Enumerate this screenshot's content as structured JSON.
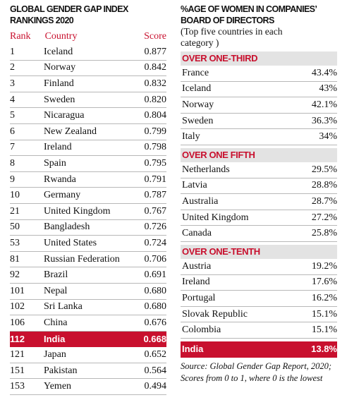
{
  "left": {
    "title_line1": "GLOBAL GENDER GAP INDEX",
    "title_line2": "RANKINGS 2020",
    "headers": {
      "rank": "Rank",
      "country": "Country",
      "score": "Score"
    },
    "rows": [
      {
        "rank": "1",
        "country": "Iceland",
        "score": "0.877"
      },
      {
        "rank": "2",
        "country": "Norway",
        "score": "0.842"
      },
      {
        "rank": "3",
        "country": "Finland",
        "score": "0.832"
      },
      {
        "rank": "4",
        "country": "Sweden",
        "score": "0.820"
      },
      {
        "rank": "5",
        "country": "Nicaragua",
        "score": "0.804"
      },
      {
        "rank": "6",
        "country": "New Zealand",
        "score": "0.799"
      },
      {
        "rank": "7",
        "country": "Ireland",
        "score": "0.798"
      },
      {
        "rank": "8",
        "country": "Spain",
        "score": "0.795"
      },
      {
        "rank": "9",
        "country": "Rwanda",
        "score": "0.791"
      },
      {
        "rank": "10",
        "country": "Germany",
        "score": "0.787"
      },
      {
        "rank": "21",
        "country": "United Kingdom",
        "score": "0.767"
      },
      {
        "rank": "50",
        "country": "Bangladesh",
        "score": "0.726"
      },
      {
        "rank": "53",
        "country": "United States",
        "score": "0.724"
      },
      {
        "rank": "81",
        "country": "Russian Federation",
        "score": "0.706"
      },
      {
        "rank": "92",
        "country": "Brazil",
        "score": "0.691"
      },
      {
        "rank": "101",
        "country": "Nepal",
        "score": "0.680"
      },
      {
        "rank": "102",
        "country": "Sri Lanka",
        "score": "0.680"
      },
      {
        "rank": "106",
        "country": "China",
        "score": "0.676"
      },
      {
        "rank": "112",
        "country": "India",
        "score": "0.668",
        "highlight": true
      },
      {
        "rank": "121",
        "country": "Japan",
        "score": "0.652"
      },
      {
        "rank": "151",
        "country": "Pakistan",
        "score": "0.564"
      },
      {
        "rank": "153",
        "country": "Yemen",
        "score": "0.494"
      }
    ]
  },
  "right": {
    "title_line1": "%AGE OF WOMEN IN COMPANIES’",
    "title_line2": "BOARD OF DIRECTORS",
    "subtitle_line1": "(Top five countries in each",
    "subtitle_line2": "category )",
    "sections": [
      {
        "heading": "OVER ONE-THIRD",
        "rows": [
          {
            "country": "France",
            "value": "43.4%"
          },
          {
            "country": "Iceland",
            "value": "43%"
          },
          {
            "country": "Norway",
            "value": "42.1%"
          },
          {
            "country": "Sweden",
            "value": "36.3%"
          },
          {
            "country": "Italy",
            "value": "34%"
          }
        ]
      },
      {
        "heading": "OVER ONE FIFTH",
        "rows": [
          {
            "country": "Netherlands",
            "value": "29.5%"
          },
          {
            "country": "Latvia",
            "value": "28.8%"
          },
          {
            "country": "Australia",
            "value": "28.7%"
          },
          {
            "country": "United Kingdom",
            "value": "27.2%"
          },
          {
            "country": "Canada",
            "value": "25.8%"
          }
        ]
      },
      {
        "heading": "OVER ONE-TENTH",
        "rows": [
          {
            "country": "Austria",
            "value": "19.2%"
          },
          {
            "country": "Ireland",
            "value": "17.6%"
          },
          {
            "country": "Portugal",
            "value": "16.2%"
          },
          {
            "country": "Slovak Republic",
            "value": "15.1%"
          },
          {
            "country": "Colombia",
            "value": "15.1%"
          }
        ]
      }
    ],
    "india": {
      "country": "India",
      "value": "13.8%"
    },
    "note_line1": "Source: Global Gender Gap Report, 2020;",
    "note_line2": "Scores from 0 to 1, where 0 is the lowest"
  },
  "colors": {
    "accent": "#c8102e",
    "section_bg": "#e3e3e3"
  }
}
